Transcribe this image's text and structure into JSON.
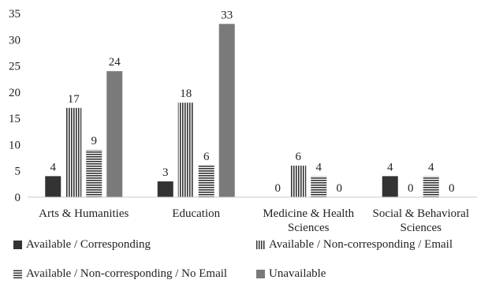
{
  "chart_data": {
    "type": "bar",
    "categories": [
      [
        "Arts & Humanities"
      ],
      [
        "Education"
      ],
      [
        "Medicine & Health",
        "Sciences"
      ],
      [
        "Social & Behavioral",
        "Sciences"
      ]
    ],
    "series": [
      {
        "name": "Available / Corresponding",
        "values": [
          4,
          3,
          0,
          4
        ],
        "pattern": "solid-dark",
        "color": "#333333"
      },
      {
        "name": "Available / Non-corresponding / Email",
        "values": [
          17,
          18,
          6,
          0
        ],
        "pattern": "vertical-stripes",
        "color": "#333333"
      },
      {
        "name": "Available / Non-corresponding / No Email",
        "values": [
          9,
          6,
          4,
          4
        ],
        "pattern": "horizontal-stripes",
        "color": "#333333"
      },
      {
        "name": "Unavailable",
        "values": [
          24,
          33,
          0,
          0
        ],
        "pattern": "solid-gray",
        "color": "#7a7a7a"
      }
    ],
    "y_ticks": [
      0,
      5,
      10,
      15,
      20,
      25,
      30,
      35
    ],
    "ylim": [
      0,
      35
    ],
    "grid": false,
    "legend_position": "bottom",
    "data_labels": true
  }
}
